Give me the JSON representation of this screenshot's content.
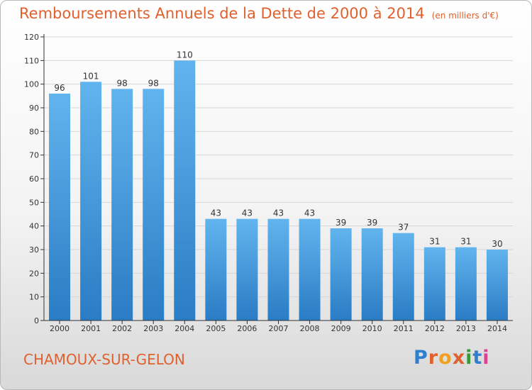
{
  "title": "Remboursements Annuels de la Dette de 2000 à 2014",
  "subtitle": "(en milliers d'€)",
  "location": "CHAMOUX-SUR-GELON",
  "logo_text": "Proxiti",
  "logo_colors": [
    "#2f7fd0",
    "#e0602e",
    "#f0a020",
    "#e0602e",
    "#3a9a3a",
    "#2f7fd0",
    "#e04090"
  ],
  "colors": {
    "title": "#e0602e",
    "bar_top": "#62b4ee",
    "bar_bottom": "#2a7cc4",
    "axis": "#333333",
    "grid": "#d6d6d6"
  },
  "chart_data": {
    "type": "bar",
    "title": "Remboursements Annuels de la Dette de 2000 à 2014",
    "subtitle": "(en milliers d'€)",
    "categories": [
      "2000",
      "2001",
      "2002",
      "2003",
      "2004",
      "2005",
      "2006",
      "2007",
      "2008",
      "2009",
      "2010",
      "2011",
      "2012",
      "2013",
      "2014"
    ],
    "values": [
      96,
      101,
      98,
      98,
      110,
      43,
      43,
      43,
      43,
      39,
      39,
      37,
      31,
      31,
      30
    ],
    "ylim": [
      0,
      120
    ],
    "yticks": [
      0,
      10,
      20,
      30,
      40,
      50,
      60,
      70,
      80,
      90,
      100,
      110,
      120
    ],
    "grid": true,
    "data_labels": true
  }
}
